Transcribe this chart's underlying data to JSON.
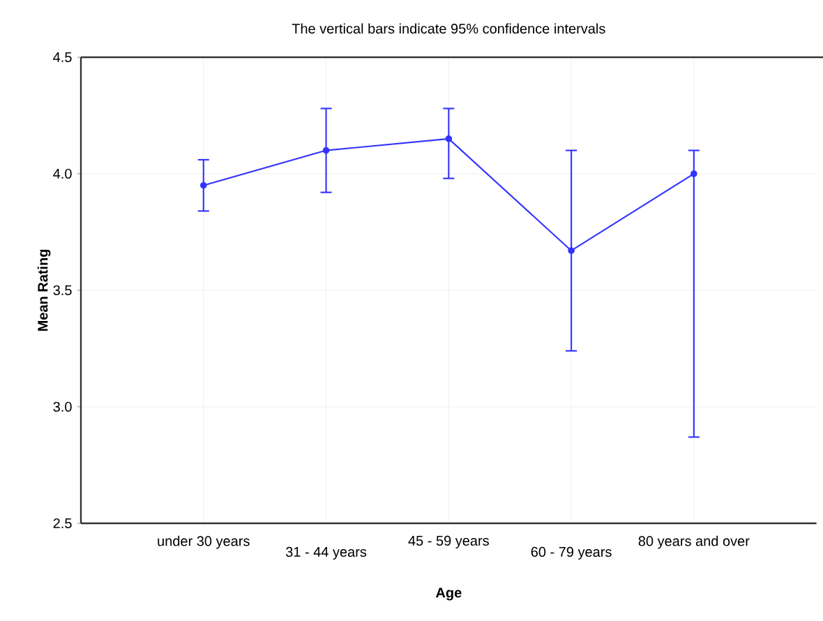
{
  "chart_data": {
    "type": "line",
    "title": "The vertical bars indicate 95%  confidence intervals",
    "xlabel": "Age",
    "ylabel": "Mean Rating",
    "categories": [
      "under 30 years",
      "31 - 44 years",
      "45 - 59 years",
      "60 - 79 years",
      "80 years and over"
    ],
    "series": [
      {
        "color": "#3333ff",
        "values": [
          3.95,
          4.1,
          4.15,
          3.67,
          4.0
        ],
        "errors": [
          [
            3.84,
            4.06
          ],
          [
            3.92,
            4.28
          ],
          [
            3.98,
            4.28
          ],
          [
            3.24,
            4.1
          ],
          [
            2.87,
            4.1
          ]
        ]
      }
    ],
    "ylim": [
      2.5,
      4.5
    ],
    "yticks": [
      2.5,
      {
        "value": 3,
        "label": "3.0"
      },
      3.5,
      {
        "value": 4,
        "label": "4.0"
      },
      4.5
    ],
    "grid": true,
    "marker": "circle",
    "line_style": "solid"
  }
}
